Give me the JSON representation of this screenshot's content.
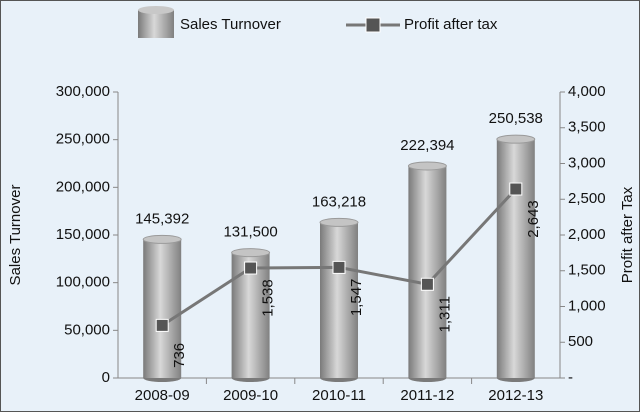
{
  "chart_data": {
    "type": "bar-line",
    "categories": [
      "2008-09",
      "2009-10",
      "2010-11",
      "2011-12",
      "2012-13"
    ],
    "series": [
      {
        "name": "Sales Turnover",
        "type": "bar",
        "color": "#9a9a9a",
        "axis": "y",
        "values": [
          145392,
          131500,
          163218,
          222394,
          250538
        ],
        "value_labels": [
          "145,392",
          "131,500",
          "163,218",
          "222,394",
          "250,538"
        ]
      },
      {
        "name": "Profit after tax",
        "type": "line",
        "color": "#777777",
        "axis": "y2",
        "values": [
          736,
          1538,
          1547,
          1311,
          2643
        ],
        "value_labels": [
          "736",
          "1,538",
          "1,547",
          "1,311",
          "2,643"
        ]
      }
    ],
    "ylabel": "Sales Turnover",
    "y2label": "Profit after Tax",
    "ylim": [
      0,
      300000
    ],
    "yticks": [
      0,
      {
        "value": 50000,
        "label": "50,000"
      },
      {
        "value": 100000,
        "label": "100,000"
      },
      {
        "value": 150000,
        "label": "150,000"
      },
      {
        "value": 200000,
        "label": "200,000"
      },
      {
        "value": 250000,
        "label": "250,000"
      },
      {
        "value": 300000,
        "label": "300,000"
      }
    ],
    "y2lim": [
      0,
      4000
    ],
    "y2ticks": [
      {
        "value": 0,
        "label": "-"
      },
      500,
      {
        "value": 1000,
        "label": "1,000"
      },
      {
        "value": 1500,
        "label": "1,500"
      },
      {
        "value": 2000,
        "label": "2,000"
      },
      {
        "value": 2500,
        "label": "2,500"
      },
      {
        "value": 3000,
        "label": "3,000"
      },
      {
        "value": 3500,
        "label": "3,500"
      },
      {
        "value": 4000,
        "label": "4,000"
      }
    ]
  }
}
